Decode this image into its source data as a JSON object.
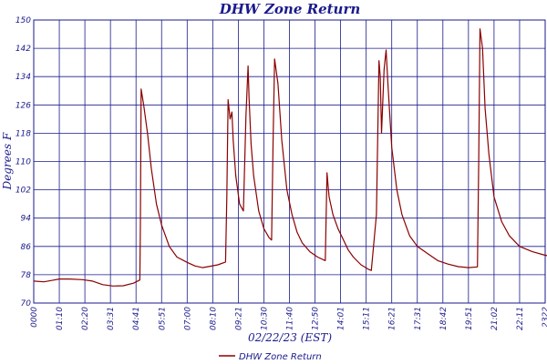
{
  "chart_data": {
    "type": "line",
    "title": "DHW Zone Return",
    "xlabel": "02/22/23 (EST)",
    "ylabel": "Degrees F",
    "ylim": [
      70,
      150
    ],
    "yticks": [
      "70",
      "78",
      "86",
      "94",
      "102",
      "110",
      "118",
      "126",
      "134",
      "142",
      "150"
    ],
    "xticks": [
      "0000",
      "01:10",
      "02:20",
      "03:31",
      "04:41",
      "05:51",
      "07:00",
      "08:10",
      "09:21",
      "10:30",
      "11:40",
      "12:50",
      "14:01",
      "15:11",
      "16:21",
      "17:31",
      "18:42",
      "19:51",
      "21:02",
      "22:11",
      "2322"
    ],
    "grid": true,
    "legend_position": "bottom",
    "colors": {
      "line": "#8b0000",
      "grid": "#1a1a8c",
      "text": "#1a1a8c"
    },
    "series": [
      {
        "name": "DHW Zone Return",
        "x": [
          0.0,
          0.4,
          0.8,
          1.0,
          1.4,
          1.9,
          2.3,
          2.7,
          3.1,
          3.5,
          3.9,
          4.15,
          4.17,
          4.2,
          4.3,
          4.45,
          4.6,
          4.8,
          5.0,
          5.3,
          5.6,
          6.0,
          6.3,
          6.6,
          6.9,
          7.2,
          7.5,
          7.55,
          7.6,
          7.68,
          7.75,
          7.8,
          7.9,
          8.05,
          8.2,
          8.3,
          8.38,
          8.42,
          8.5,
          8.6,
          8.8,
          9.0,
          9.2,
          9.3,
          9.36,
          9.42,
          9.55,
          9.7,
          9.9,
          10.1,
          10.3,
          10.5,
          10.8,
          11.1,
          11.4,
          11.47,
          11.5,
          11.55,
          11.7,
          11.9,
          12.1,
          12.3,
          12.5,
          12.8,
          13.1,
          13.2,
          13.4,
          13.5,
          13.55,
          13.6,
          13.7,
          13.78,
          13.85,
          14.0,
          14.2,
          14.4,
          14.7,
          15.0,
          15.4,
          15.8,
          16.2,
          16.6,
          17.0,
          17.35,
          17.4,
          17.45,
          17.55,
          17.65,
          17.8,
          18.0,
          18.3,
          18.6,
          19.0,
          19.5,
          20.0,
          20.5,
          21.0,
          21.5,
          22.0,
          22.3,
          22.7,
          23.2
        ],
        "values": [
          76.2,
          76.0,
          76.5,
          76.8,
          76.8,
          76.6,
          76.2,
          75.2,
          74.8,
          74.9,
          75.6,
          76.5,
          92,
          130.5,
          126,
          118,
          108,
          98,
          92,
          86,
          83,
          81.5,
          80.5,
          80.0,
          80.4,
          80.8,
          81.6,
          100,
          127.5,
          122,
          124,
          116,
          106,
          98,
          96,
          123,
          137,
          128,
          115,
          106,
          96,
          91,
          88.5,
          87.8,
          115,
          139,
          132,
          116,
          102,
          95,
          90,
          87,
          84.5,
          83,
          82,
          106.8,
          104,
          100,
          95,
          91,
          88,
          85,
          83,
          80.8,
          79.5,
          79.2,
          95,
          138.5,
          134,
          118,
          136,
          141.5,
          132,
          114,
          102,
          95,
          89,
          86,
          84,
          82,
          81,
          80.3,
          80.0,
          80.2,
          110,
          147.5,
          142,
          125,
          112,
          100,
          93,
          89,
          86,
          84.5,
          83.5,
          82.8,
          82.2,
          81.8,
          81.4,
          79.5,
          79.0,
          78.5
        ]
      }
    ]
  }
}
